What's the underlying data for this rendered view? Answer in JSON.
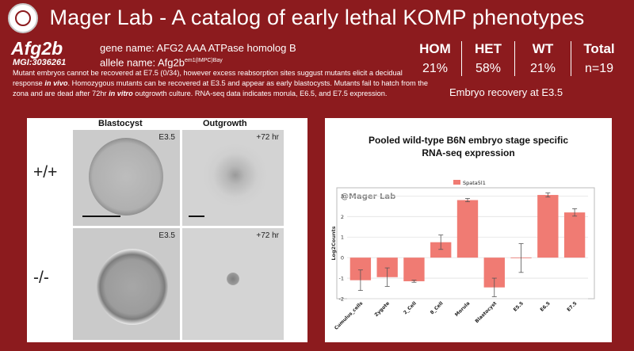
{
  "header": {
    "title": "Mager Lab - A catalog of early lethal KOMP phenotypes"
  },
  "gene": {
    "symbol": "Afg2b",
    "mgi": "MGI:3036261",
    "name_label": "gene name: AFG2 AAA ATPase homolog B",
    "allele_label": "allele name: Afg2b",
    "allele_sup": "em1(IMPC)Bay"
  },
  "description": {
    "part1": "Mutant embryos cannot be recovered at E7.5 (0/34), however excess reabsorption sites suggust mutants elicit a decidual response ",
    "em1": "in vivo",
    "part2": ". Homozygous mutants can be recovered at E3.5 and appear as early blastocysts. Mutants fail to hatch from the zona and are dead after 72hr ",
    "em2": "in vitro",
    "part3": " outgrowth culture. RNA-seq data indicates morula, E6.5, and E7.5 expression."
  },
  "stats": [
    {
      "label": "HOM",
      "value": "21%"
    },
    {
      "label": "HET",
      "value": "58%"
    },
    {
      "label": "WT",
      "value": "21%"
    },
    {
      "label": "Total",
      "value": "n=19"
    }
  ],
  "recovery_label": "Embryo recovery at E3.5",
  "images": {
    "col_blastocyst": "Blastocyst",
    "col_outgrowth": "Outgrowth",
    "row_wt": "+/+",
    "row_mut": "-/-",
    "tag_e35": "E3.5",
    "tag_72": "+72 hr"
  },
  "chart_data": {
    "type": "bar",
    "title_line1": "Pooled wild-type B6N embryo stage specific",
    "title_line2": "RNA-seq expression",
    "watermark": "@Mager Lab",
    "ylabel": "Log2Counts",
    "ylim": [
      -2,
      3.4
    ],
    "yticks": [
      -2,
      -1,
      0,
      1,
      2,
      3
    ],
    "categories": [
      "Cumulus_cells",
      "Zygote",
      "2_Cell",
      "8_Cell",
      "Morula",
      "Blastocyst",
      "E5.5",
      "E6.5",
      "E7.5"
    ],
    "series": [
      {
        "name": "Spata5l1",
        "color": "#f07b73",
        "values": [
          -1.1,
          -0.95,
          -1.15,
          0.75,
          2.8,
          -1.45,
          -0.02,
          3.05,
          2.2
        ],
        "errors": [
          0.5,
          0.45,
          0.05,
          0.35,
          0.08,
          0.45,
          0.7,
          0.1,
          0.18
        ]
      }
    ]
  }
}
